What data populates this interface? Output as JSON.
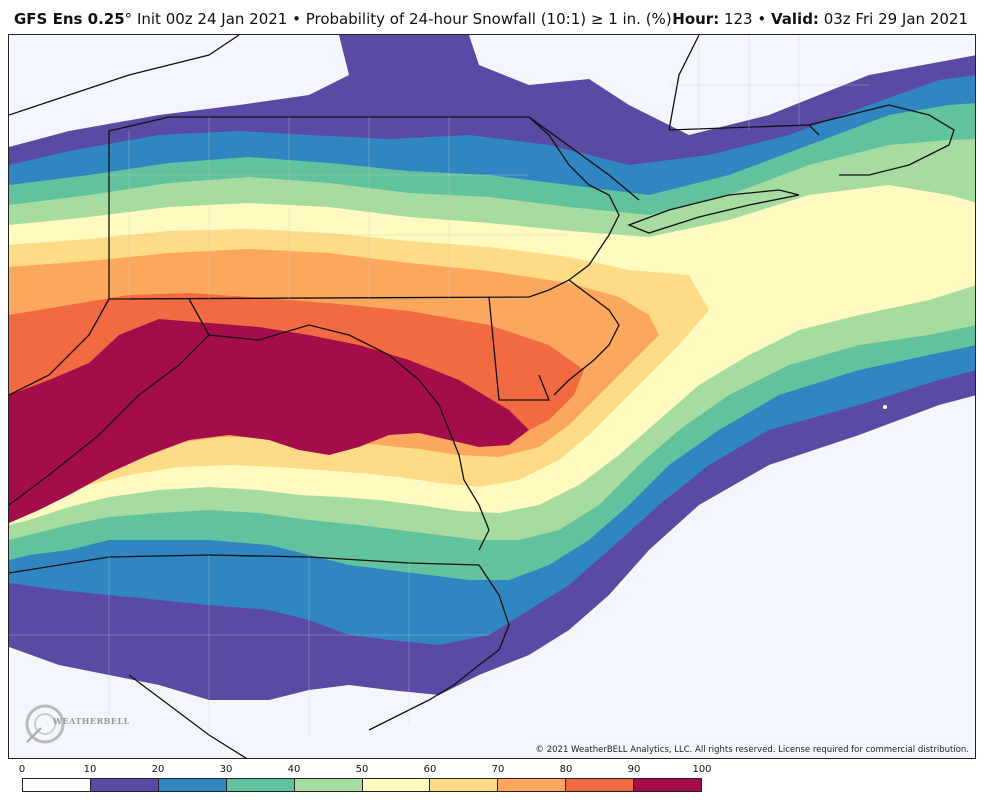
{
  "header": {
    "model": "GFS Ens 0.25",
    "degree": "°",
    "init": " Init 00z 24 Jan 2021",
    "bullet": " • ",
    "product": "Probability of 24-hour Snowfall (10:1) ≥ 1 in. (%)",
    "hour_label": "Hour:",
    "hour_value": " 123",
    "valid_label": "Valid:",
    "valid_value": " 03z Fri 29 Jan 2021"
  },
  "copyright": "© 2021 WeatherBELL Analytics, LLC. All rights reserved. License required for commercial distribution.",
  "logo": {
    "text": "WEATHERBELL"
  },
  "legend": {
    "ticks": [
      "0",
      "10",
      "20",
      "30",
      "40",
      "50",
      "60",
      "70",
      "80",
      "90",
      "100"
    ],
    "colors": [
      "#ffffff",
      "#5b4aa3",
      "#2f86c0",
      "#62c29d",
      "#a6dca0",
      "#fffbc0",
      "#fedb86",
      "#fba85e",
      "#f26a42",
      "#a50c4a"
    ]
  }
}
